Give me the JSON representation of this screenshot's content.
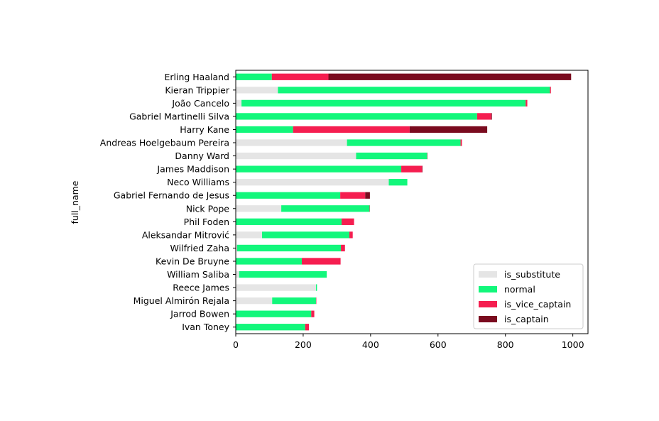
{
  "chart_data": {
    "type": "bar",
    "orientation": "horizontal",
    "stacked": true,
    "ylabel": "full_name",
    "xlabel": "",
    "xlim": [
      0,
      1045
    ],
    "xticks": [
      0,
      200,
      400,
      600,
      800,
      1000
    ],
    "grid": false,
    "legend_position": "bottom-right",
    "categories": [
      "Erling Haaland",
      "Kieran Trippier",
      "João Cancelo",
      "Gabriel Martinelli Silva",
      "Harry Kane",
      "Andreas Hoelgebaum Pereira",
      "Danny Ward",
      "James Maddison",
      "Neco Williams",
      "Gabriel Fernando de Jesus",
      "Nick Pope",
      "Phil Foden",
      "Aleksandar Mitrović",
      "Wilfried Zaha",
      "Kevin De Bruyne",
      "William Saliba",
      "Reece James",
      "Miguel Almirón Rejala",
      "Jarrod Bowen",
      "Ivan Toney"
    ],
    "series": [
      {
        "name": "is_substitute",
        "color": "#e5e5e5",
        "values": [
          0,
          125,
          17,
          0,
          0,
          330,
          357,
          0,
          454,
          0,
          135,
          0,
          78,
          4,
          0,
          10,
          238,
          108,
          0,
          0
        ]
      },
      {
        "name": "normal",
        "color": "#12f77b",
        "values": [
          107,
          807,
          843,
          716,
          170,
          337,
          211,
          491,
          55,
          310,
          262,
          314,
          259,
          308,
          196,
          260,
          3,
          130,
          224,
          206
        ]
      },
      {
        "name": "is_vice_captain",
        "color": "#f51e50",
        "values": [
          168,
          3,
          5,
          42,
          346,
          4,
          1,
          62,
          0,
          74,
          1,
          37,
          10,
          12,
          115,
          0,
          0,
          1,
          9,
          11
        ]
      },
      {
        "name": "is_captain",
        "color": "#7a0b1f",
        "values": [
          720,
          0,
          0,
          2,
          230,
          0,
          0,
          1,
          0,
          14,
          0,
          0,
          0,
          0,
          0,
          0,
          0,
          0,
          0,
          0
        ]
      }
    ]
  }
}
